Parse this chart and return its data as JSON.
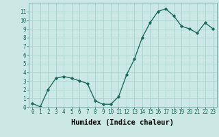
{
  "x": [
    0,
    1,
    2,
    3,
    4,
    5,
    6,
    7,
    8,
    9,
    10,
    11,
    12,
    13,
    14,
    15,
    16,
    17,
    18,
    19,
    20,
    21,
    22,
    23
  ],
  "y": [
    0.4,
    0.0,
    2.0,
    3.3,
    3.5,
    3.3,
    3.0,
    2.7,
    0.7,
    0.3,
    0.3,
    1.2,
    3.7,
    5.5,
    8.0,
    9.7,
    11.0,
    11.3,
    10.5,
    9.3,
    9.0,
    8.5,
    9.7,
    9.0
  ],
  "xlim": [
    -0.5,
    23.5
  ],
  "ylim": [
    0,
    12
  ],
  "yticks": [
    0,
    1,
    2,
    3,
    4,
    5,
    6,
    7,
    8,
    9,
    10,
    11
  ],
  "xticks": [
    0,
    1,
    2,
    3,
    4,
    5,
    6,
    7,
    8,
    9,
    10,
    11,
    12,
    13,
    14,
    15,
    16,
    17,
    18,
    19,
    20,
    21,
    22,
    23
  ],
  "xlabel": "Humidex (Indice chaleur)",
  "line_color": "#1a6b5a",
  "marker": "D",
  "marker_size": 1.8,
  "line_width": 1.0,
  "bg_color": "#cce8e4",
  "grid_color": "#aad4cf",
  "tick_label_fontsize": 5.5,
  "xlabel_fontsize": 7.5
}
